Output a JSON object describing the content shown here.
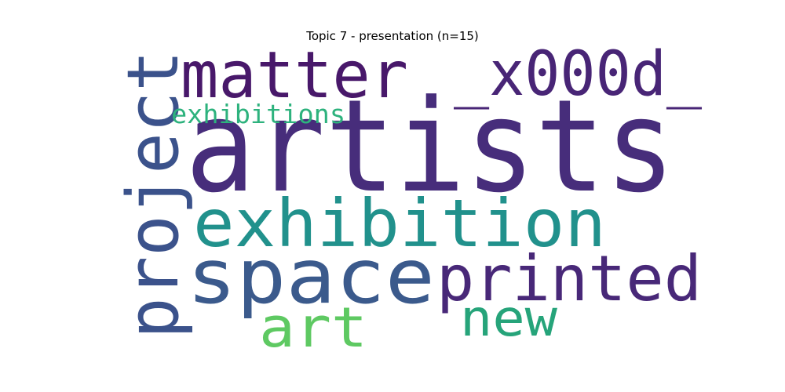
{
  "title": "Topic 7 - presentation (n=15)",
  "words": [
    {
      "text": "artists",
      "color": "#472d7b"
    },
    {
      "text": "matter",
      "color": "#48186a"
    },
    {
      "text": "_x000d_",
      "color": "#482576"
    },
    {
      "text": "project",
      "color": "#3b528b"
    },
    {
      "text": "exhibitions",
      "color": "#2db27d"
    },
    {
      "text": "exhibition",
      "color": "#21918c"
    },
    {
      "text": "space",
      "color": "#3b5a8c"
    },
    {
      "text": "printed",
      "color": "#482878"
    },
    {
      "text": "art",
      "color": "#5ec962"
    },
    {
      "text": "new",
      "color": "#26a47a"
    }
  ]
}
